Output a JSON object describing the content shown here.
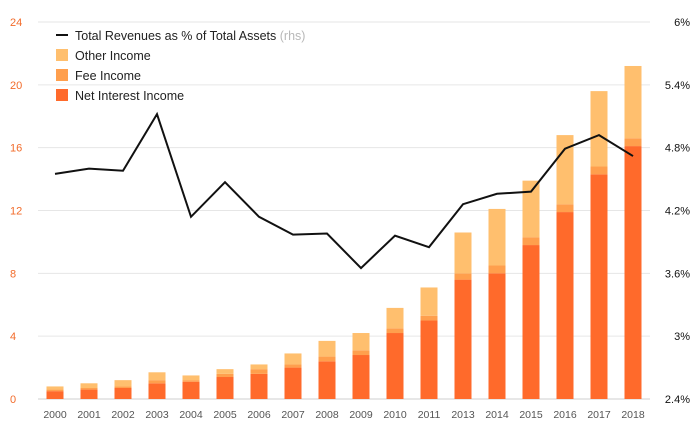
{
  "chart_data": {
    "type": "bar",
    "stacked": true,
    "categories": [
      "2000",
      "2001",
      "2002",
      "2003",
      "2004",
      "2005",
      "2006",
      "2007",
      "2008",
      "2009",
      "2010",
      "2011",
      "2013",
      "2014",
      "2015",
      "2016",
      "2017",
      "2018"
    ],
    "series": [
      {
        "name": "Net Interest Income",
        "color": "#ff6a2b",
        "values": [
          0.5,
          0.6,
          0.7,
          1.0,
          1.1,
          1.4,
          1.6,
          2.0,
          2.4,
          2.8,
          4.2,
          5.0,
          7.6,
          8.0,
          9.8,
          11.9,
          14.3,
          16.1
        ]
      },
      {
        "name": "Fee Income",
        "color": "#ff9f4d",
        "values": [
          0.1,
          0.1,
          0.1,
          0.2,
          0.1,
          0.2,
          0.3,
          0.2,
          0.3,
          0.3,
          0.3,
          0.3,
          0.4,
          0.5,
          0.5,
          0.5,
          0.5,
          0.5
        ]
      },
      {
        "name": "Other Income",
        "color": "#ffbf6e",
        "values": [
          0.2,
          0.3,
          0.4,
          0.5,
          0.3,
          0.3,
          0.3,
          0.7,
          1.0,
          1.1,
          1.3,
          1.8,
          2.6,
          3.6,
          3.6,
          4.4,
          4.8,
          4.6
        ]
      }
    ],
    "line_series": {
      "name": "Total Revenues as % of Total Assets",
      "axis_note": "(rhs)",
      "color": "#111111",
      "values": [
        4.55,
        4.6,
        4.58,
        5.12,
        4.14,
        4.47,
        4.14,
        3.97,
        3.98,
        3.65,
        3.96,
        3.85,
        4.26,
        4.36,
        4.38,
        4.79,
        4.92,
        4.72
      ]
    },
    "y_left": {
      "min": 0,
      "max": 24,
      "ticks": [
        "0",
        "4",
        "8",
        "12",
        "16",
        "20",
        "24"
      ],
      "color": "#f26b2a"
    },
    "y_right": {
      "min": 2.4,
      "max": 6.0,
      "ticks": [
        "2.4%",
        "3%",
        "3.6%",
        "4.2%",
        "4.8%",
        "5.4%",
        "6%"
      ]
    },
    "grid": true,
    "legend_position": "top-left"
  }
}
